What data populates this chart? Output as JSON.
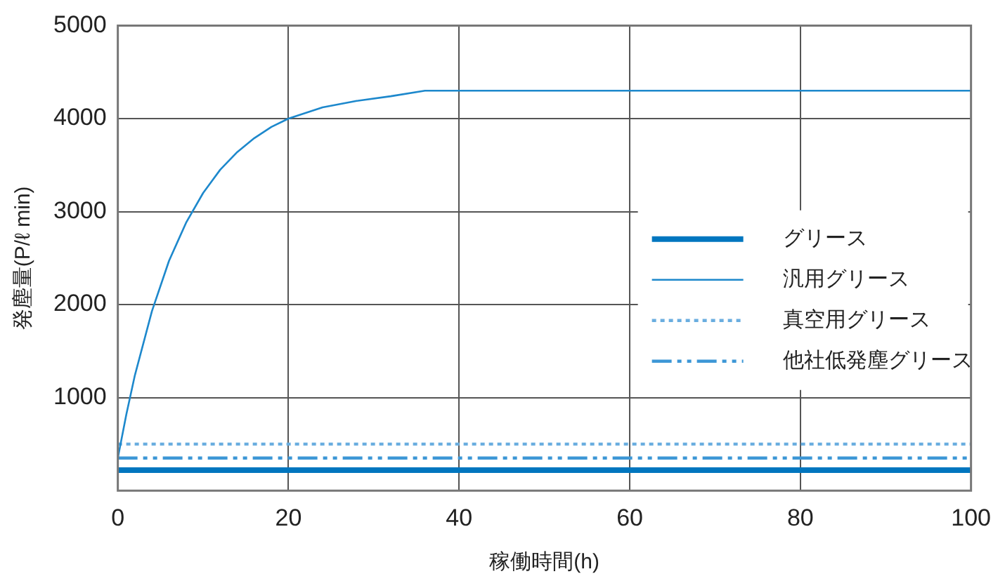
{
  "chart_data": {
    "type": "line",
    "xlabel": "稼働時間(h)",
    "ylabel": "発塵量(P/ℓ min)",
    "xlim": [
      0,
      100
    ],
    "xticks": [
      0,
      20,
      40,
      60,
      80,
      100
    ],
    "ylim": [
      0,
      5000
    ],
    "yticks": [
      1000,
      2000,
      3000,
      4000,
      5000
    ],
    "grid": true,
    "legend": "right",
    "marker": "none",
    "series": [
      {
        "name": "グリース",
        "color": "#0076bf",
        "line_style": "solid",
        "x": [
          0,
          100
        ],
        "values": [
          220,
          220
        ]
      },
      {
        "name": "汎用グリース",
        "color": "#1d88cc",
        "line_style": "solid",
        "x": [
          0,
          1,
          2,
          4,
          6,
          8,
          10,
          12,
          14,
          16,
          18,
          20,
          24,
          28,
          32,
          36,
          100
        ],
        "values": [
          350,
          820,
          1240,
          1930,
          2470,
          2880,
          3200,
          3450,
          3640,
          3790,
          3910,
          4000,
          4120,
          4190,
          4240,
          4300,
          4300
        ]
      },
      {
        "name": "真空用グリース",
        "color": "#6aaee0",
        "line_style": "dotted",
        "x": [
          0,
          100
        ],
        "values": [
          500,
          500
        ]
      },
      {
        "name": "他社低発塵グリース",
        "color": "#3d97d6",
        "line_style": "dashdot",
        "x": [
          0,
          100
        ],
        "values": [
          350,
          350
        ]
      }
    ]
  }
}
